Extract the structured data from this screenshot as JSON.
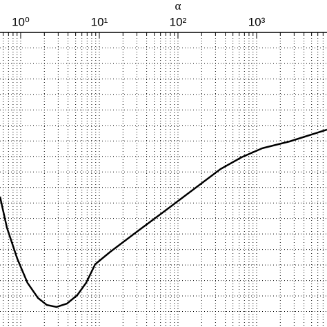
{
  "chart_data": {
    "type": "line",
    "x_label": "α",
    "log_x": true,
    "grid": true,
    "color": "#000000",
    "x": [
      0.546,
      0.668,
      0.904,
      1.22,
      1.66,
      2.15,
      2.86,
      3.87,
      5.24,
      6.81,
      8.86,
      13.8,
      30.9,
      69.5,
      156,
      348,
      646,
      1180,
      2630,
      7850
    ],
    "values": [
      8.41,
      6.41,
      4.41,
      2.85,
      1.87,
      1.42,
      1.29,
      1.51,
      2.05,
      2.85,
      4.05,
      4.85,
      6.19,
      7.52,
      8.86,
      10.19,
      10.95,
      11.53,
      11.97,
      12.73
    ],
    "xlim": [
      0.546,
      7850
    ],
    "xticks": [
      {
        "value": 1,
        "label": "10⁰"
      },
      {
        "value": 10,
        "label": "10¹"
      },
      {
        "value": 100,
        "label": "10²"
      },
      {
        "value": 1000,
        "label": "10³"
      }
    ],
    "xminor": [
      0.6,
      0.7,
      0.8,
      0.9,
      2,
      3,
      4,
      5,
      6,
      7,
      8,
      9,
      20,
      30,
      40,
      50,
      60,
      70,
      80,
      90,
      200,
      300,
      400,
      500,
      600,
      700,
      800,
      900,
      2000,
      3000,
      4000,
      5000,
      6000,
      7000
    ],
    "ylim": [
      0,
      19
    ],
    "yticks": [
      1,
      2,
      3,
      4,
      5,
      6,
      7,
      8,
      9,
      10,
      11,
      12,
      13,
      14,
      15,
      16,
      17,
      18
    ]
  }
}
